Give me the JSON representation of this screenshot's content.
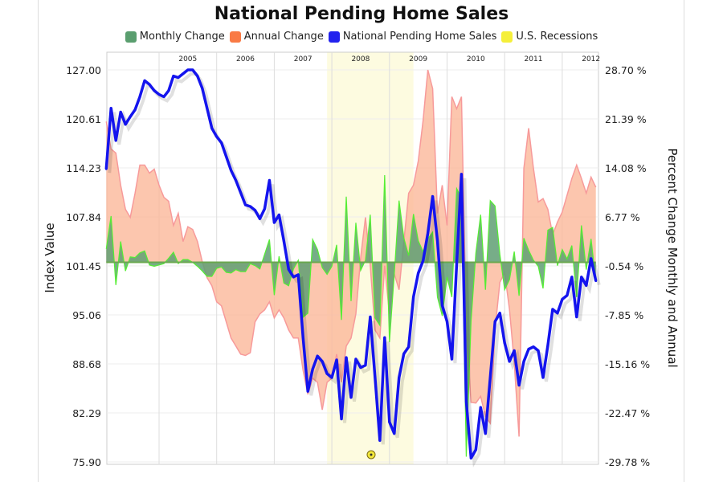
{
  "chart_data": {
    "type": "line",
    "title": "National Pending Home Sales",
    "legend": {
      "placement": "top",
      "items": [
        {
          "label": "Monthly Change",
          "color": "#5a9e6f"
        },
        {
          "label": "Annual Change",
          "color": "#f97a45"
        },
        {
          "label": "National Pending Home Sales",
          "color": "#2222ee"
        },
        {
          "label": "U.S. Recessions",
          "color": "#f5ef3a"
        }
      ]
    },
    "ylabel_left": "Index Value",
    "ylabel_right": "Percent Change Monthly and Annual",
    "ylim_left": [
      75.9,
      127.0
    ],
    "ylim_right": [
      -29.78,
      28.7
    ],
    "yticks_left": [
      "127.00",
      "120.61",
      "114.23",
      "107.84",
      "101.45",
      "95.06",
      "88.68",
      "82.29",
      "75.90"
    ],
    "yticks_right": [
      "28.70 %",
      "21.39 %",
      "14.08 %",
      "6.77 %",
      "-0.54 %",
      "-7.85 %",
      "-15.16 %",
      "-22.47 %",
      "-29.78 %"
    ],
    "xticks": [
      "2005",
      "2006",
      "2007",
      "2008",
      "2009",
      "2010",
      "2011",
      "2012"
    ],
    "grid": true,
    "recession": {
      "start": "2007-12",
      "end": "2009-06"
    },
    "dates": [
      "2004-02",
      "2004-03",
      "2004-04",
      "2004-05",
      "2004-06",
      "2004-07",
      "2004-08",
      "2004-09",
      "2004-10",
      "2004-11",
      "2004-12",
      "2005-01",
      "2005-02",
      "2005-03",
      "2005-04",
      "2005-05",
      "2005-06",
      "2005-07",
      "2005-08",
      "2005-09",
      "2005-10",
      "2005-11",
      "2005-12",
      "2006-01",
      "2006-02",
      "2006-03",
      "2006-04",
      "2006-05",
      "2006-06",
      "2006-07",
      "2006-08",
      "2006-09",
      "2006-10",
      "2006-11",
      "2006-12",
      "2007-01",
      "2007-02",
      "2007-03",
      "2007-04",
      "2007-05",
      "2007-06",
      "2007-07",
      "2007-08",
      "2007-09",
      "2007-10",
      "2007-11",
      "2007-12",
      "2008-01",
      "2008-02",
      "2008-03",
      "2008-04",
      "2008-05",
      "2008-06",
      "2008-07",
      "2008-08",
      "2008-09",
      "2008-10",
      "2008-11",
      "2008-12",
      "2009-01",
      "2009-02",
      "2009-03",
      "2009-04",
      "2009-05",
      "2009-06",
      "2009-07",
      "2009-08",
      "2009-09",
      "2009-10",
      "2009-11",
      "2009-12",
      "2010-01",
      "2010-02",
      "2010-03",
      "2010-04",
      "2010-05",
      "2010-06",
      "2010-07",
      "2010-08",
      "2010-09",
      "2010-10",
      "2010-11",
      "2010-12",
      "2011-01",
      "2011-02",
      "2011-03",
      "2011-04",
      "2011-05",
      "2011-06",
      "2011-07",
      "2011-08",
      "2011-09",
      "2011-10",
      "2011-11",
      "2011-12",
      "2012-01",
      "2012-02",
      "2012-03",
      "2012-04",
      "2012-05",
      "2012-06",
      "2012-07",
      "2012-08"
    ],
    "series": [
      {
        "name": "National Pending Home Sales",
        "axis": "left",
        "values": [
          114.1,
          122.0,
          117.8,
          121.5,
          119.9,
          120.9,
          121.8,
          123.5,
          125.6,
          125.1,
          124.3,
          123.8,
          123.5,
          124.3,
          126.2,
          126.0,
          126.5,
          127.0,
          127.0,
          126.2,
          124.6,
          122.0,
          119.4,
          118.3,
          117.5,
          115.7,
          113.9,
          112.6,
          111.0,
          109.4,
          109.2,
          108.7,
          107.6,
          108.9,
          112.6,
          107.1,
          108.1,
          104.7,
          101.0,
          100.0,
          100.3,
          92.1,
          85.1,
          88.0,
          89.7,
          89.0,
          87.4,
          86.9,
          89.2,
          81.5,
          89.5,
          84.3,
          89.3,
          88.2,
          88.5,
          94.8,
          86.9,
          78.7,
          92.1,
          81.1,
          79.6,
          86.9,
          90.0,
          90.9,
          97.4,
          100.5,
          102.1,
          105.7,
          110.5,
          104.7,
          96.3,
          94.2,
          89.3,
          101.6,
          113.4,
          83.8,
          76.4,
          77.5,
          83.0,
          79.6,
          86.9,
          94.2,
          95.3,
          91.4,
          89.0,
          90.4,
          85.9,
          89.0,
          90.6,
          90.9,
          90.4,
          86.9,
          91.1,
          95.8,
          95.3,
          97.1,
          97.6,
          100.0,
          94.8,
          100.0,
          98.9,
          102.4,
          99.5
        ]
      },
      {
        "name": "Annual Change",
        "axis": "right",
        "values": [
          21.0,
          16.9,
          16.3,
          11.5,
          7.9,
          6.7,
          10.3,
          14.5,
          14.5,
          13.3,
          13.9,
          11.5,
          9.7,
          9.1,
          5.5,
          7.3,
          3.1,
          5.3,
          4.9,
          3.1,
          0.1,
          -2.3,
          -3.5,
          -5.9,
          -6.5,
          -8.9,
          -11.3,
          -12.5,
          -13.7,
          -13.9,
          -13.5,
          -8.9,
          -7.7,
          -7.1,
          -5.9,
          -8.3,
          -7.1,
          -8.3,
          -10.1,
          -11.3,
          -11.3,
          -16.1,
          -19.7,
          -17.3,
          -17.9,
          -22.0,
          -17.9,
          -17.3,
          -13.7,
          -17.9,
          -12.5,
          -11.3,
          -7.7,
          0.7,
          6.7,
          -0.5,
          -10.1,
          -11.3,
          -0.5,
          -7.7,
          -1.7,
          -4.1,
          3.1,
          10.3,
          11.5,
          15.1,
          21.1,
          28.7,
          25.9,
          7.3,
          11.5,
          5.5,
          24.7,
          22.9,
          24.7,
          -10.1,
          -20.9,
          -21.0,
          -20.0,
          -23.0,
          -24.0,
          -10.0,
          -3.0,
          -1.5,
          -7.0,
          -15.0,
          -26.0,
          14.0,
          20.0,
          14.0,
          9.0,
          9.5,
          7.9,
          4.1,
          6.0,
          7.5,
          10.0,
          12.5,
          14.5,
          12.5,
          10.3,
          12.7,
          11.2
        ]
      },
      {
        "name": "Monthly Change",
        "axis": "right",
        "values": [
          2.0,
          6.9,
          -3.4,
          3.1,
          -1.3,
          0.8,
          0.7,
          1.4,
          1.7,
          -0.4,
          -0.6,
          -0.4,
          -0.2,
          0.6,
          1.5,
          -0.2,
          0.4,
          0.4,
          0.0,
          -0.6,
          -1.3,
          -2.1,
          -2.1,
          -0.9,
          -0.7,
          -1.5,
          -1.6,
          -1.1,
          -1.4,
          -1.4,
          -0.2,
          -0.5,
          -1.0,
          1.2,
          3.4,
          -4.9,
          0.9,
          -3.1,
          -3.5,
          -1.0,
          0.3,
          -8.2,
          -7.6,
          3.4,
          1.9,
          -0.8,
          -1.8,
          -0.6,
          2.6,
          -8.6,
          9.8,
          -5.8,
          5.9,
          -1.2,
          0.3,
          7.1,
          -8.3,
          -9.4,
          13.0,
          -11.9,
          -1.8,
          9.2,
          3.6,
          1.0,
          7.2,
          3.2,
          1.6,
          3.5,
          4.5,
          -5.2,
          -8.0,
          -2.2,
          -5.2,
          11.0,
          9.6,
          -29.0,
          -8.8,
          1.4,
          7.1,
          -4.1,
          9.2,
          8.4,
          1.2,
          -4.1,
          -2.6,
          1.6,
          -5.0,
          3.6,
          1.8,
          0.3,
          -0.6,
          -3.9,
          4.8,
          5.2,
          -0.5,
          1.9,
          0.5,
          2.5,
          -5.2,
          5.5,
          -1.1,
          3.5,
          -2.8
        ]
      }
    ],
    "colors": {
      "index_line": "#1414ee",
      "annual_fill": "#fbb89a",
      "annual_stroke": "#f79a9a",
      "monthly_fill": "#5f9f73",
      "monthly_stroke": "#55ee33",
      "recession_fill": "#fdfbe0",
      "grid": "#dddddd"
    },
    "marker_icon": "flag-icon"
  }
}
